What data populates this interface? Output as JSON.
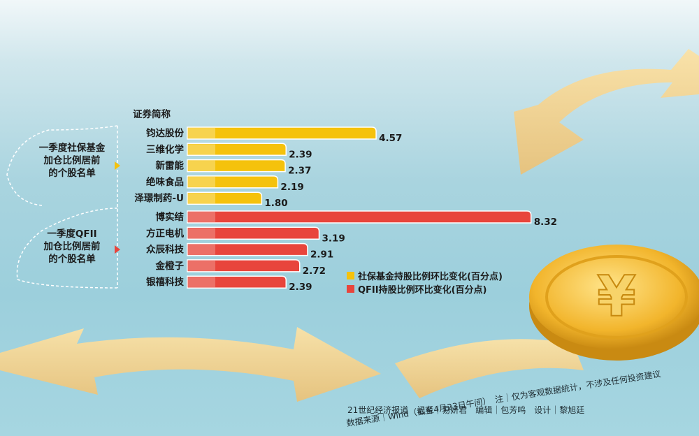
{
  "chart_data": {
    "type": "bar",
    "orientation": "horizontal",
    "column_header": "证券简称",
    "groups": [
      {
        "label_lines": [
          "一季度社保基金",
          "加仓比例居前",
          "的个股名单"
        ],
        "color": "#f5c20c",
        "series_name": "社保基金持股比例环比变化(百分点)",
        "categories": [
          "钧达股份",
          "三维化学",
          "新雷能",
          "绝味食品",
          "泽璟制药-U"
        ],
        "values": [
          4.57,
          2.39,
          2.37,
          2.19,
          1.8
        ],
        "value_labels": [
          "4.57",
          "2.39",
          "2.37",
          "2.19",
          "1.80"
        ]
      },
      {
        "label_lines": [
          "一季度QFII",
          "加仓比例居前",
          "的个股名单"
        ],
        "color": "#e8453c",
        "series_name": "QFII持股比例环比变化(百分点)",
        "categories": [
          "博实结",
          "方正电机",
          "众辰科技",
          "金橙子",
          "银禧科技"
        ],
        "values": [
          8.32,
          3.19,
          2.91,
          2.72,
          2.39
        ],
        "value_labels": [
          "8.32",
          "3.19",
          "2.91",
          "2.72",
          "2.39"
        ]
      }
    ]
  },
  "footer": {
    "line1": "21世纪经济报道　记者｜易妍君　编辑｜包芳鸣　设计｜黎旭廷",
    "line2": "数据来源｜Wind（截至4月23日午间）　注｜仅为客观数据统计，不涉及任何投资建议"
  },
  "colors": {
    "social_fund": "#f5c20c",
    "qfii": "#e8453c"
  }
}
